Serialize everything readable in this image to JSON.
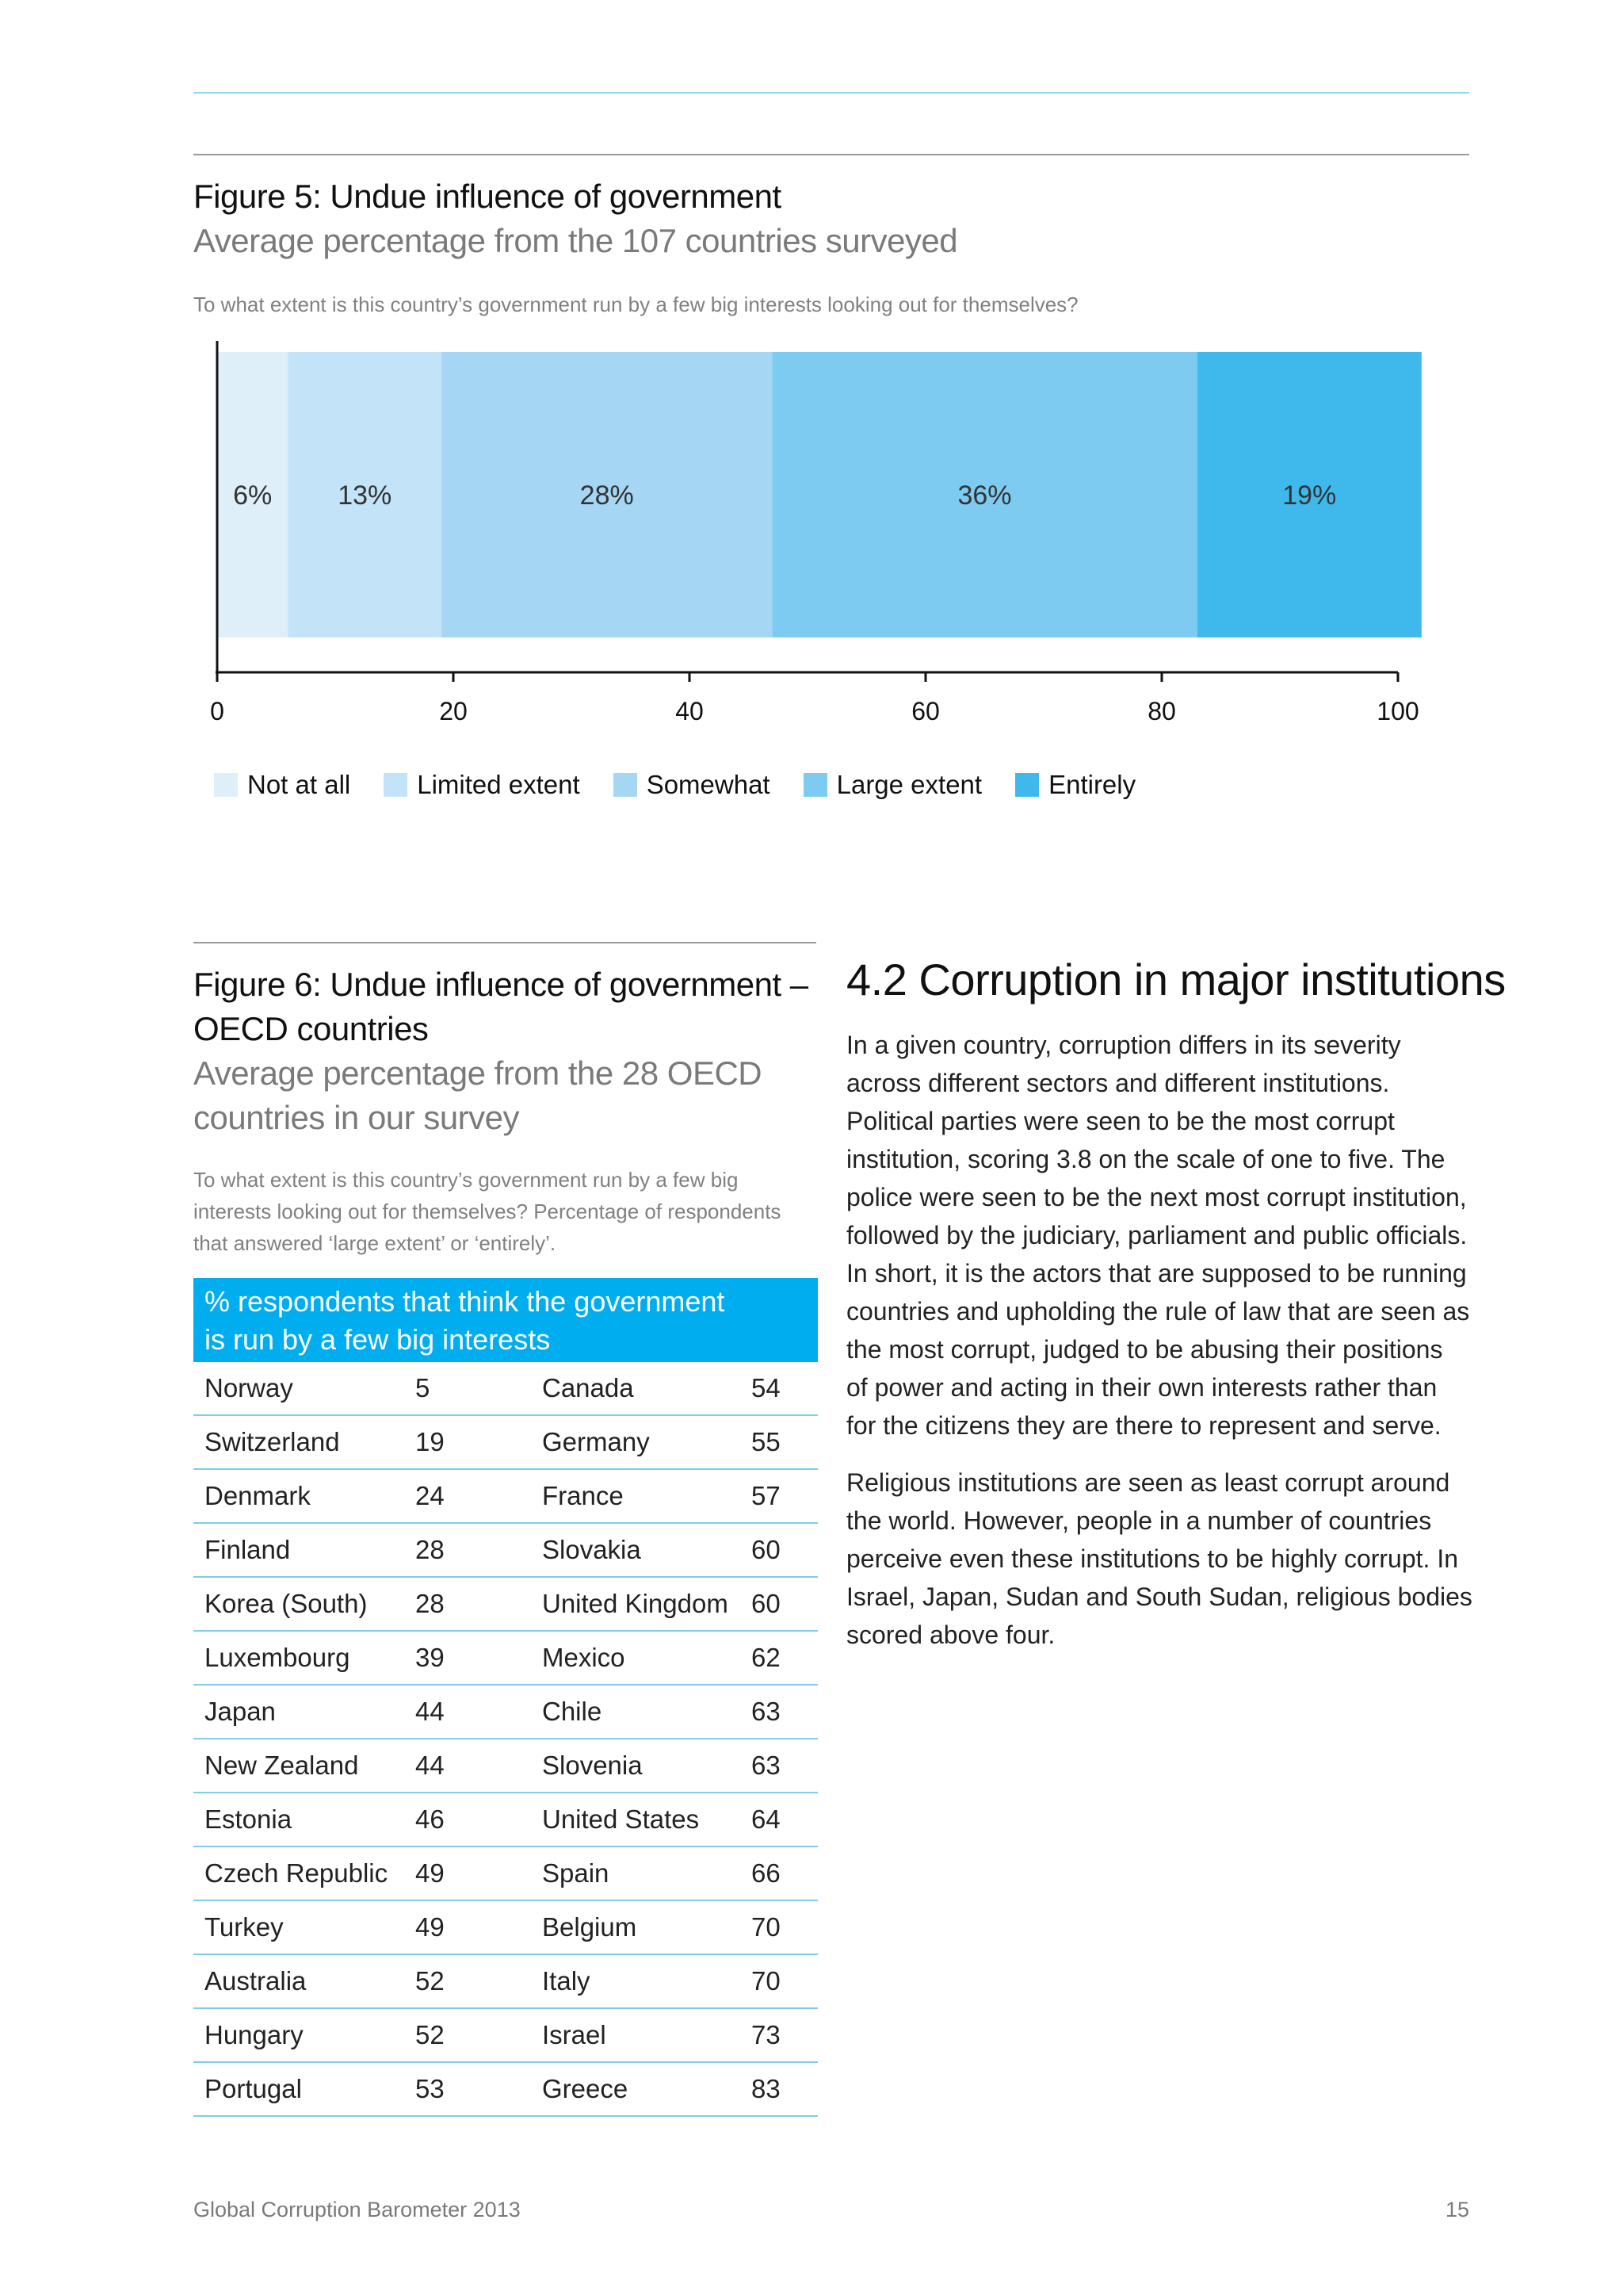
{
  "figure5": {
    "title": "Figure 5: Undue influence of government",
    "subtitle": "Average percentage from the 107 countries surveyed",
    "question": "To what extent is this country’s government run by a few big interests looking out for themselves?"
  },
  "chart_data": {
    "type": "bar",
    "orientation": "horizontal-stacked",
    "title": "Figure 5: Undue influence of government",
    "subtitle": "Average percentage from the 107 countries surveyed",
    "xlim": [
      0,
      100
    ],
    "xticks": [
      0,
      20,
      40,
      60,
      80,
      100
    ],
    "series": [
      {
        "name": "Not at all",
        "value": 6,
        "label": "6%",
        "color": "#deeffa"
      },
      {
        "name": "Limited extent",
        "value": 13,
        "label": "13%",
        "color": "#c3e4f8"
      },
      {
        "name": "Somewhat",
        "value": 28,
        "label": "28%",
        "color": "#a5d7f5"
      },
      {
        "name": "Large extent",
        "value": 36,
        "label": "36%",
        "color": "#7ecbf2"
      },
      {
        "name": "Entirely",
        "value": 19,
        "label": "19%",
        "color": "#3fb9ec"
      }
    ],
    "legend_position": "bottom",
    "grid": false
  },
  "figure6": {
    "title_line1": "Figure 6: Undue influence of government –",
    "title_line2": "OECD countries",
    "subtitle_line1": "Average percentage from the 28 OECD",
    "subtitle_line2": "countries in our survey",
    "question_line1": "To what extent is this country’s government run by a few big",
    "question_line2": "interests looking out for themselves? Percentage of respondents",
    "question_line3": "that answered ‘large extent’ or ‘entirely’.",
    "table_header_line1": "% respondents that think the government",
    "table_header_line2": "is run by a few big interests",
    "rows": [
      {
        "c1": "Norway",
        "v1": "5",
        "c2": "Canada",
        "v2": "54"
      },
      {
        "c1": "Switzerland",
        "v1": "19",
        "c2": "Germany",
        "v2": "55"
      },
      {
        "c1": "Denmark",
        "v1": "24",
        "c2": "France",
        "v2": "57"
      },
      {
        "c1": "Finland",
        "v1": "28",
        "c2": "Slovakia",
        "v2": "60"
      },
      {
        "c1": "Korea (South)",
        "v1": "28",
        "c2": "United Kingdom",
        "v2": "60"
      },
      {
        "c1": "Luxembourg",
        "v1": "39",
        "c2": "Mexico",
        "v2": "62"
      },
      {
        "c1": "Japan",
        "v1": "44",
        "c2": "Chile",
        "v2": "63"
      },
      {
        "c1": "New Zealand",
        "v1": "44",
        "c2": "Slovenia",
        "v2": "63"
      },
      {
        "c1": "Estonia",
        "v1": "46",
        "c2": "United States",
        "v2": "64"
      },
      {
        "c1": "Czech Republic",
        "v1": "49",
        "c2": "Spain",
        "v2": "66"
      },
      {
        "c1": "Turkey",
        "v1": "49",
        "c2": "Belgium",
        "v2": "70"
      },
      {
        "c1": "Australia",
        "v1": "52",
        "c2": "Italy",
        "v2": "70"
      },
      {
        "c1": "Hungary",
        "v1": "52",
        "c2": "Israel",
        "v2": "73"
      },
      {
        "c1": "Portugal",
        "v1": "53",
        "c2": "Greece",
        "v2": "83"
      }
    ]
  },
  "section": {
    "heading": "4.2 Corruption in major institutions",
    "p1_lines": [
      "In a given country, corruption differs in its severity",
      "across different sectors and different institutions.",
      "Political parties were seen to be the most corrupt",
      "institution, scoring 3.8 on the scale of one to five. The",
      "police were seen to be the next most corrupt institution,",
      "followed by the judiciary, parliament and public officials.",
      "In short, it is the actors that are supposed to be running",
      "countries and upholding the rule of law that are seen as",
      "the most corrupt, judged to be abusing their positions",
      "of power and acting in their own interests rather than",
      "for the citizens they are there to represent and serve."
    ],
    "p2_lines": [
      "Religious institutions are seen as least corrupt around",
      "the world. However, people in a number of countries",
      "perceive even these institutions to be highly corrupt. In",
      "Israel, Japan, Sudan and South Sudan, religious bodies",
      "scored above four."
    ]
  },
  "footer": {
    "publication": "Global Corruption Barometer 2013",
    "page_number": "15"
  }
}
